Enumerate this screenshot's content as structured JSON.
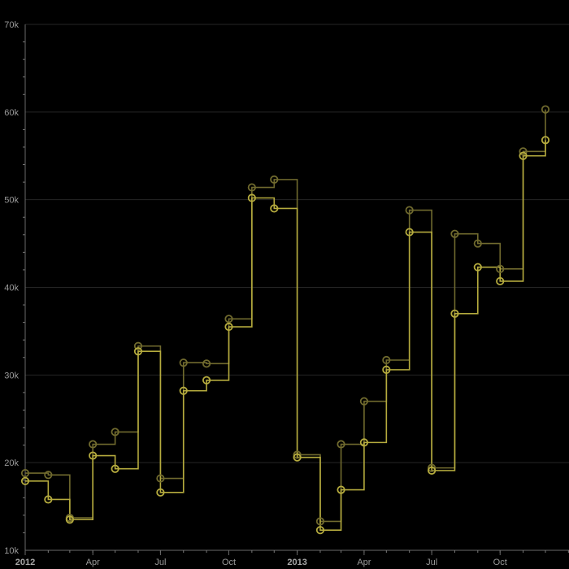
{
  "chart_data": {
    "type": "line",
    "step": "after",
    "title": "",
    "xlabel": "",
    "ylabel": "",
    "ylim": [
      10000,
      70000
    ],
    "xlim": [
      "2012-01-01",
      "2013-12-01"
    ],
    "y_ticks": [
      {
        "value": 10000,
        "label": "10k"
      },
      {
        "value": 20000,
        "label": "20k"
      },
      {
        "value": 30000,
        "label": "30k"
      },
      {
        "value": 40000,
        "label": "40k"
      },
      {
        "value": 50000,
        "label": "50k"
      },
      {
        "value": 60000,
        "label": "60k"
      },
      {
        "value": 70000,
        "label": "70k"
      }
    ],
    "x_ticks": [
      {
        "date": "2012-01-01",
        "label": "2012",
        "major": true
      },
      {
        "date": "2012-04-01",
        "label": "Apr",
        "major": false
      },
      {
        "date": "2012-07-01",
        "label": "Jul",
        "major": false
      },
      {
        "date": "2012-10-01",
        "label": "Oct",
        "major": false
      },
      {
        "date": "2013-01-01",
        "label": "2013",
        "major": true
      },
      {
        "date": "2013-04-01",
        "label": "Apr",
        "major": false
      },
      {
        "date": "2013-07-01",
        "label": "Jul",
        "major": false
      },
      {
        "date": "2013-10-01",
        "label": "Oct",
        "major": false
      }
    ],
    "grid": true,
    "x": [
      "2012-01-01",
      "2012-02-01",
      "2012-03-01",
      "2012-04-01",
      "2012-05-01",
      "2012-06-01",
      "2012-07-01",
      "2012-08-01",
      "2012-09-01",
      "2012-10-01",
      "2012-11-01",
      "2012-12-01",
      "2013-01-01",
      "2013-02-01",
      "2013-03-01",
      "2013-04-01",
      "2013-05-01",
      "2013-06-01",
      "2013-07-01",
      "2013-08-01",
      "2013-09-01",
      "2013-10-01",
      "2013-11-01",
      "2013-12-01"
    ],
    "series": [
      {
        "color": "#706a2e",
        "values": [
          18800,
          18600,
          13700,
          22100,
          23500,
          33300,
          18200,
          31400,
          31300,
          36400,
          51400,
          52300,
          20900,
          13300,
          22100,
          27000,
          31700,
          48800,
          19400,
          46100,
          45000,
          42100,
          55500,
          60300
        ]
      },
      {
        "color": "#b5ab3e",
        "values": [
          17900,
          15800,
          13500,
          20800,
          19300,
          32700,
          16600,
          28200,
          29400,
          35500,
          50200,
          49000,
          20600,
          12300,
          16900,
          22300,
          30600,
          46300,
          19100,
          37000,
          42300,
          40700,
          55000,
          56800
        ]
      }
    ]
  }
}
